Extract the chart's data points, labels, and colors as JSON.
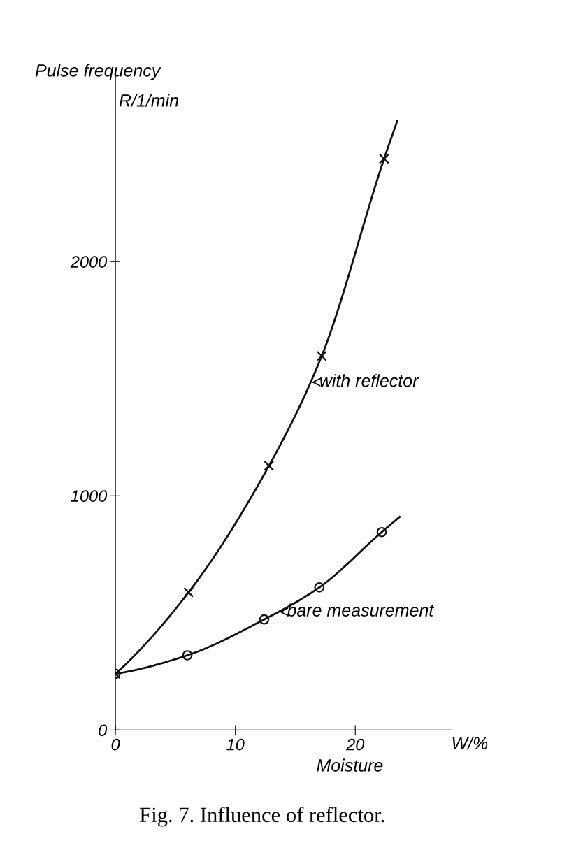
{
  "chart_data": {
    "type": "line",
    "title": "Fig. 7. Influence of reflector.",
    "ylabel": "Pulse frequency",
    "xlabel": "Moisture",
    "annotations": [
      "R/1/min",
      "W/%",
      {
        "text": "with reflector",
        "x": 16.2,
        "y": 1485
      },
      {
        "text": "bare measurement",
        "x": 13.5,
        "y": 505
      }
    ],
    "xlim": [
      0,
      28
    ],
    "ylim": [
      0,
      2800
    ],
    "xticks": [
      0,
      10,
      20
    ],
    "yticks": [
      0,
      1000,
      2000
    ],
    "grid": false,
    "legend": false,
    "series": [
      {
        "color": "#111111",
        "marker": "none",
        "x": [
          0,
          6.1,
          12.8,
          17.2,
          22.4,
          23.5
        ],
        "values": [
          240,
          588,
          1128,
          1597,
          2439,
          2600
        ]
      },
      {
        "color": "#111111",
        "marker": "none",
        "x": [
          0,
          6,
          12.4,
          17,
          22.2,
          23.7
        ],
        "values": [
          240,
          319,
          472,
          609,
          845,
          910
        ]
      },
      {
        "type": "scatter",
        "color": "#111111",
        "marker": "circle",
        "x": [
          0,
          6,
          12.4,
          17,
          22.2
        ],
        "values": [
          240,
          319,
          472,
          609,
          845
        ]
      },
      {
        "type": "scatter",
        "color": "#111111",
        "marker": "cross",
        "x": [
          0,
          6.1,
          12.8,
          17.2,
          22.4
        ],
        "values": [
          240,
          588,
          1128,
          1597,
          2439
        ]
      }
    ]
  }
}
